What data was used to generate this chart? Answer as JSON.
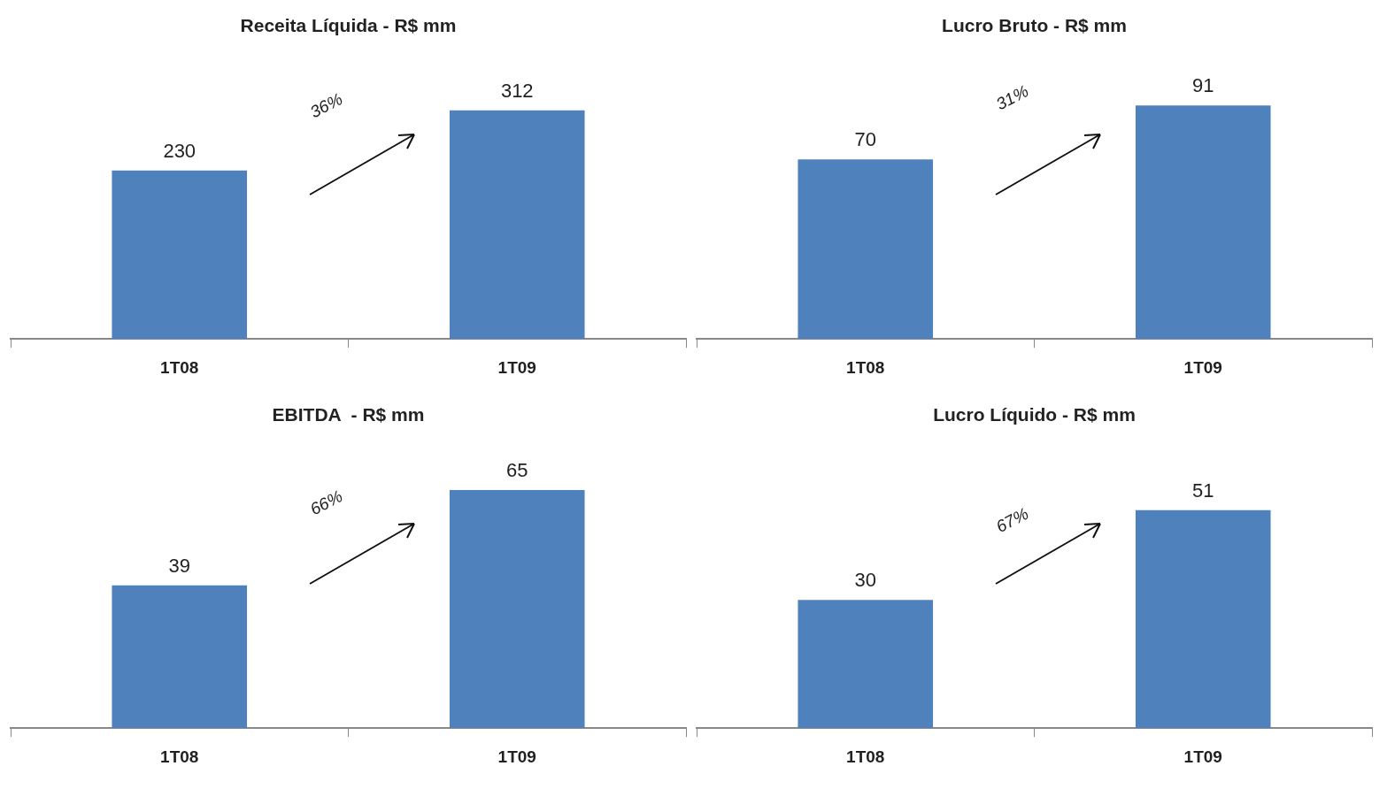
{
  "chart_data": [
    {
      "type": "bar",
      "title": "Receita Líquida - R$ mm",
      "categories": [
        "1T08",
        "1T09"
      ],
      "values": [
        230,
        312
      ],
      "color": "#4f81bd",
      "data_labels": true,
      "tick_labels": "x",
      "grid": false,
      "legend": false,
      "annotations": [
        "36%"
      ]
    },
    {
      "type": "bar",
      "title": "Lucro Bruto - R$ mm",
      "categories": [
        "1T08",
        "1T09"
      ],
      "values": [
        70,
        91
      ],
      "color": "#4f81bd",
      "data_labels": true,
      "tick_labels": "x",
      "grid": false,
      "legend": false,
      "annotations": [
        "31%"
      ]
    },
    {
      "type": "bar",
      "title": "EBITDA  - R$ mm",
      "categories": [
        "1T08",
        "1T09"
      ],
      "values": [
        39,
        65
      ],
      "color": "#4f81bd",
      "data_labels": true,
      "tick_labels": "x",
      "grid": false,
      "legend": false,
      "annotations": [
        "66%"
      ]
    },
    {
      "type": "bar",
      "title": "Lucro Líquido - R$ mm",
      "categories": [
        "1T08",
        "1T09"
      ],
      "values": [
        30,
        51
      ],
      "color": "#4f81bd",
      "data_labels": true,
      "tick_labels": "x",
      "grid": false,
      "legend": false,
      "annotations": [
        "67%"
      ]
    }
  ]
}
